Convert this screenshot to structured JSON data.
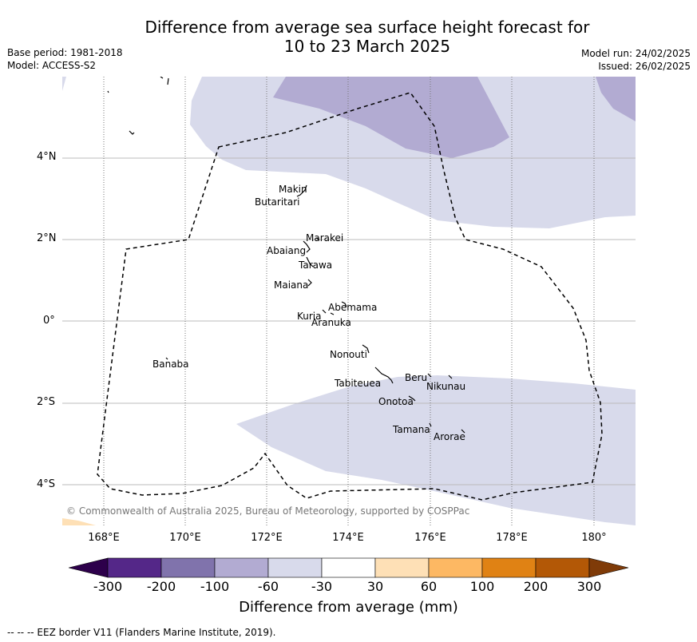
{
  "header": {
    "title_line1": "Difference from average sea surface height forecast for",
    "title_line2": "10 to 23 March 2025",
    "base_period": "Base period: 1981-2018",
    "model": "Model: ACCESS-S2",
    "model_run": "Model run: 24/02/2025",
    "issued": "Issued: 26/02/2025"
  },
  "axes": {
    "lat_labels": [
      "4°N",
      "2°N",
      "0°",
      "2°S",
      "4°S"
    ],
    "lon_labels": [
      "168°E",
      "170°E",
      "172°E",
      "174°E",
      "176°E",
      "178°E",
      "180°"
    ]
  },
  "islands": [
    {
      "name": "Makin"
    },
    {
      "name": "Butaritari"
    },
    {
      "name": "Marakei"
    },
    {
      "name": "Abaiang"
    },
    {
      "name": "Tarawa"
    },
    {
      "name": "Maiana"
    },
    {
      "name": "Abemama"
    },
    {
      "name": "Kuria"
    },
    {
      "name": "Aranuka"
    },
    {
      "name": "Nonouti"
    },
    {
      "name": "Banaba"
    },
    {
      "name": "Beru"
    },
    {
      "name": "Tabiteuea"
    },
    {
      "name": "Nikunau"
    },
    {
      "name": "Onotoa"
    },
    {
      "name": "Tamana"
    },
    {
      "name": "Arorae"
    }
  ],
  "copyright": "© Commonwealth of Australia 2025, Bureau of Meteorology, supported by COSPPac",
  "colorbar": {
    "label": "Difference from average (mm)",
    "ticks": [
      "-300",
      "-200",
      "-100",
      "-60",
      "-30",
      "30",
      "60",
      "100",
      "200",
      "300"
    ],
    "colors": {
      "below_min": "#2d004b",
      "c1": "#542788",
      "c2": "#8073ac",
      "c3": "#b2abd2",
      "c4": "#d8daeb",
      "c5": "#ffffff",
      "c6": "#fee0b6",
      "c7": "#fdb863",
      "c8": "#e08214",
      "c9": "#b35806",
      "above_max": "#7f3b08"
    }
  },
  "footnote": "--  --  -- EEZ border V11 (Flanders Marine Institute, 2019)."
}
